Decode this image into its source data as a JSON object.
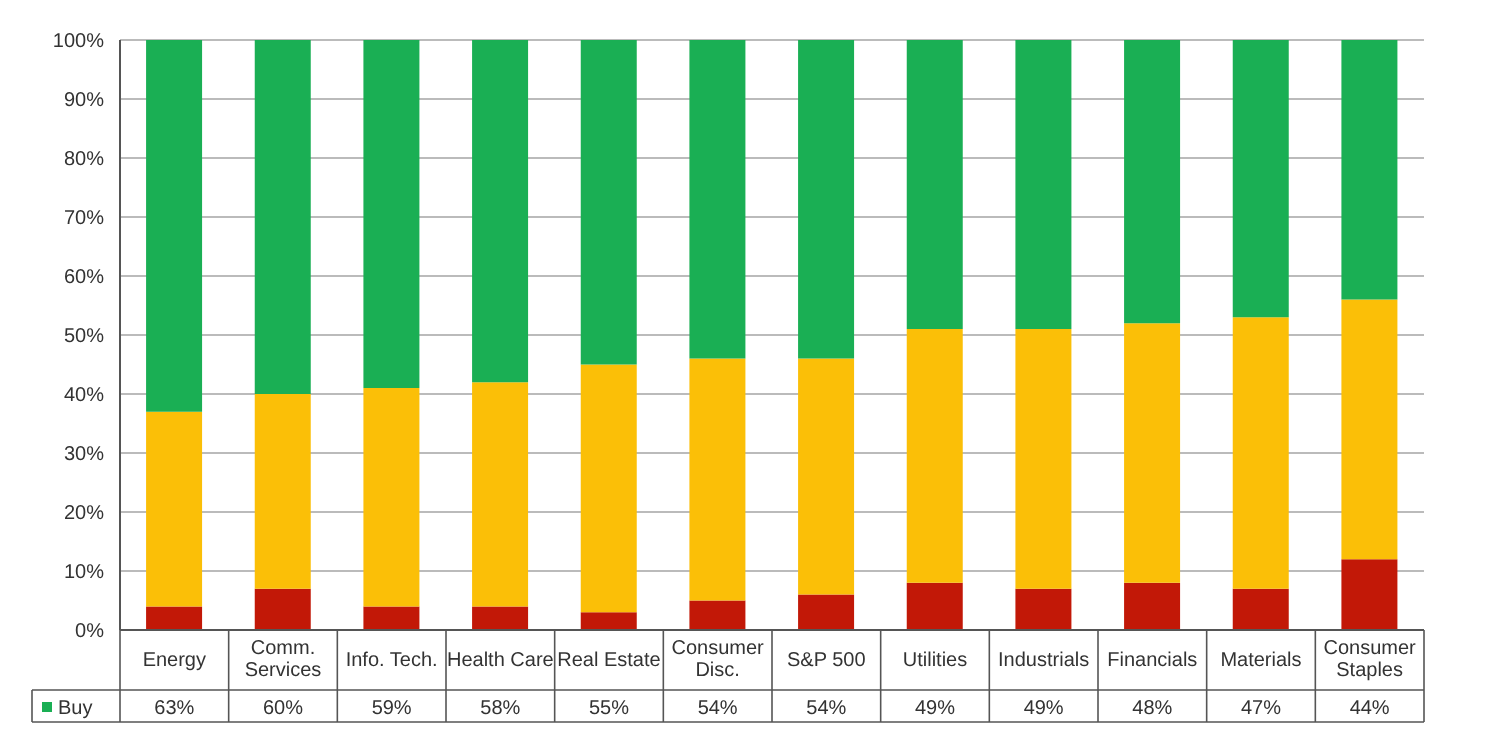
{
  "chart_data": {
    "type": "bar",
    "stacked": true,
    "categories": [
      "Energy",
      "Comm. Services",
      "Info. Tech.",
      "Health Care",
      "Real Estate",
      "Consumer Disc.",
      "S&P 500",
      "Utilities",
      "Industrials",
      "Financials",
      "Materials",
      "Consumer Staples"
    ],
    "series": [
      {
        "color": "#c21807",
        "values": [
          4,
          7,
          4,
          4,
          3,
          5,
          6,
          8,
          7,
          8,
          7,
          12
        ]
      },
      {
        "color": "#fbbf07",
        "values": [
          33,
          33,
          37,
          38,
          42,
          41,
          40,
          43,
          44,
          44,
          46,
          44
        ]
      },
      {
        "name": "Buy",
        "color": "#1aaf54",
        "values": [
          63,
          60,
          59,
          58,
          55,
          54,
          54,
          49,
          49,
          48,
          47,
          44
        ],
        "value_labels": [
          "63%",
          "60%",
          "59%",
          "58%",
          "55%",
          "54%",
          "54%",
          "49%",
          "49%",
          "48%",
          "47%",
          "44%"
        ]
      }
    ],
    "ylim": [
      0,
      100
    ],
    "yticks": [
      {
        "value": 0,
        "label": "0%"
      },
      {
        "value": 10,
        "label": "10%"
      },
      {
        "value": 20,
        "label": "20%"
      },
      {
        "value": 30,
        "label": "30%"
      },
      {
        "value": 40,
        "label": "40%"
      },
      {
        "value": 50,
        "label": "50%"
      },
      {
        "value": 60,
        "label": "60%"
      },
      {
        "value": 70,
        "label": "70%"
      },
      {
        "value": 80,
        "label": "80%"
      },
      {
        "value": 90,
        "label": "90%"
      },
      {
        "value": 100,
        "label": "100%"
      }
    ],
    "grid": "y",
    "legend": "bottom"
  }
}
